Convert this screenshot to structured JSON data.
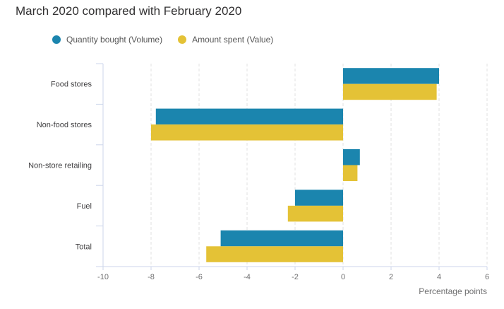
{
  "chart_data": {
    "type": "bar",
    "orientation": "horizontal",
    "title": "March 2020 compared with February 2020",
    "categories": [
      "Food stores",
      "Non-food stores",
      "Non-store retailing",
      "Fuel",
      "Total"
    ],
    "series": [
      {
        "name": "Quantity bought (Volume)",
        "color": "#1b85ae",
        "values": [
          4.0,
          -7.8,
          0.7,
          -2.0,
          -5.1
        ]
      },
      {
        "name": "Amount spent (Value)",
        "color": "#e4c236",
        "values": [
          3.9,
          -8.0,
          0.6,
          -2.3,
          -5.7
        ]
      }
    ],
    "xlabel": "Percentage points",
    "ylabel": "",
    "xlim": [
      -10,
      6
    ],
    "xticks": [
      "-10",
      "-8",
      "-6",
      "-4",
      "-2",
      "0",
      "2",
      "4",
      "6"
    ],
    "grid": true,
    "legend_position": "top-left"
  }
}
